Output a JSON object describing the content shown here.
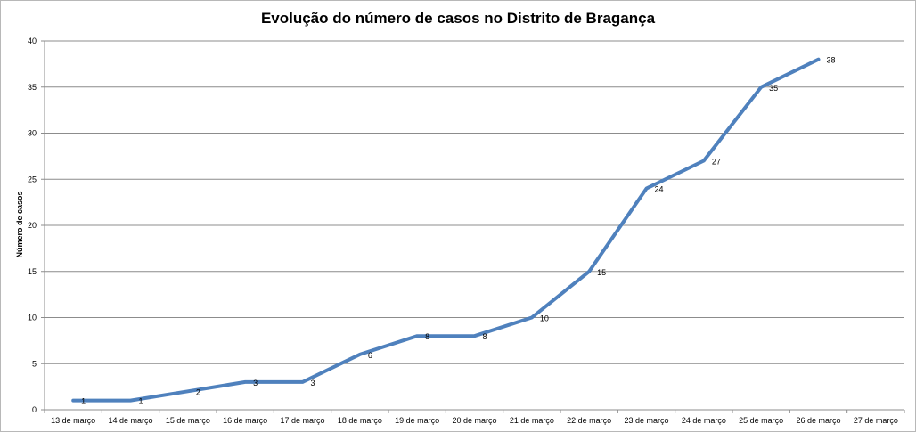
{
  "chart_data": {
    "type": "line",
    "title": "Evolução do número de casos no Distrito de Bragança",
    "xlabel": "",
    "ylabel": "Número de casos",
    "ylim": [
      0,
      40
    ],
    "yticks": [
      "0",
      "5",
      "10",
      "15",
      "20",
      "25",
      "30",
      "35",
      "40"
    ],
    "categories": [
      "13 de março",
      "14 de março",
      "15 de março",
      "16 de março",
      "17 de março",
      "18 de março",
      "19 de março",
      "20 de março",
      "21 de março",
      "22 de março",
      "23 de março",
      "24 de março",
      "25 de março",
      "26 de março",
      "27 de março"
    ],
    "series": [
      {
        "values": [
          1,
          1,
          2,
          3,
          3,
          6,
          8,
          8,
          10,
          15,
          24,
          27,
          35,
          38,
          null
        ],
        "color": "#4f81bd"
      }
    ],
    "grid": true,
    "legend": "none",
    "colors": {
      "line": "#4f81bd",
      "grid": "#8c8c8c",
      "axis": "#8c8c8c"
    }
  }
}
